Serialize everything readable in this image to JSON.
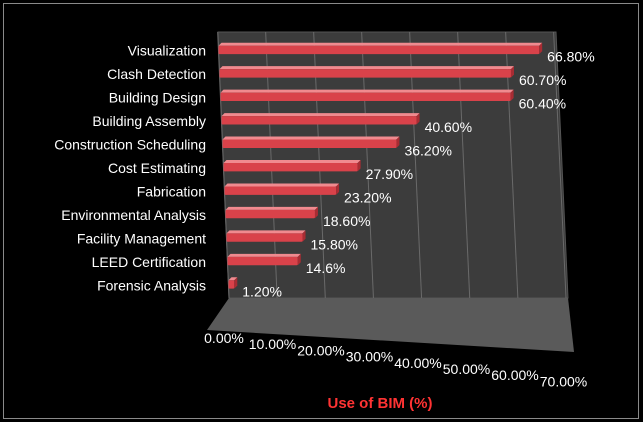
{
  "chart_data": {
    "type": "bar",
    "orientation": "horizontal",
    "style": "3d",
    "categories": [
      "Visualization",
      "Clash Detection",
      "Building Design",
      "Building Assembly",
      "Construction Scheduling",
      "Cost Estimating",
      "Fabrication",
      "Environmental Analysis",
      "Facility Management",
      "LEED Certification",
      "Forensic Analysis"
    ],
    "values": [
      66.8,
      60.7,
      60.4,
      40.6,
      36.2,
      27.9,
      23.2,
      18.6,
      15.8,
      14.6,
      1.2
    ],
    "data_labels": [
      "66.80%",
      "60.70%",
      "60.40%",
      "40.60%",
      "36.20%",
      "27.90%",
      "23.20%",
      "18.60%",
      "15.80%",
      "14.6%",
      "1.20%"
    ],
    "x_ticks": [
      "0.00%",
      "10.00%",
      "20.00%",
      "30.00%",
      "40.00%",
      "50.00%",
      "60.00%",
      "70.00%"
    ],
    "xlim": [
      0,
      70
    ],
    "xlabel": "Use of BIM (%)",
    "grid": true,
    "legend": "none",
    "colors": {
      "bar": "#d9424a",
      "bar_top": "#f08a8f",
      "wall": "#3c3c3c",
      "floor": "#5a5a5a",
      "axis_title": "#ff3333",
      "text": "#ffffff",
      "background": "#000000"
    }
  }
}
